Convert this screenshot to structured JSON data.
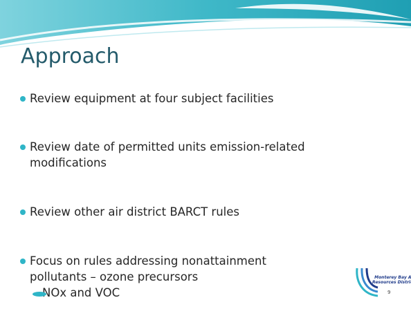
{
  "title": "Approach",
  "bullets": [
    {
      "lines": [
        "Review equipment at four subject facilities"
      ],
      "sub": []
    },
    {
      "lines": [
        "Review date of permitted units emission-related",
        "modifications"
      ],
      "sub": []
    },
    {
      "lines": [
        "Review other air district BARCT rules"
      ],
      "sub": []
    },
    {
      "lines": [
        "Focus on rules addressing nonattainment",
        "pollutants – ozone precursors"
      ],
      "sub": [
        "NOx and VOC"
      ]
    }
  ],
  "logo": {
    "lines": [
      "Monterey Bay Air",
      "Resources District"
    ]
  },
  "page_number": "9"
}
